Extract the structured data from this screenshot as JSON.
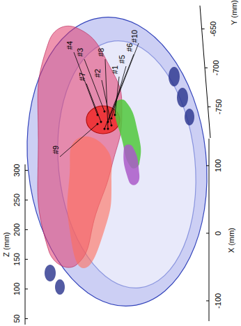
{
  "chart_data": {
    "type": "3d_rendering",
    "xlabel": "X (mm)",
    "ylabel": "Y (mm)",
    "zlabel": "Z (mm)",
    "xlim": [
      -130,
      140
    ],
    "xticks": [
      -100,
      0,
      100
    ],
    "ylim": [
      -620,
      -790
    ],
    "yticks": [
      -650,
      -700,
      -750
    ],
    "zlim": [
      40,
      310
    ],
    "zticks": [
      50,
      100,
      150,
      200,
      250,
      300
    ],
    "annotations": [
      "#1",
      "#2",
      "#3",
      "#4",
      "#5",
      "#6",
      "#7",
      "#8",
      "#9",
      "#10"
    ],
    "grid": false
  }
}
